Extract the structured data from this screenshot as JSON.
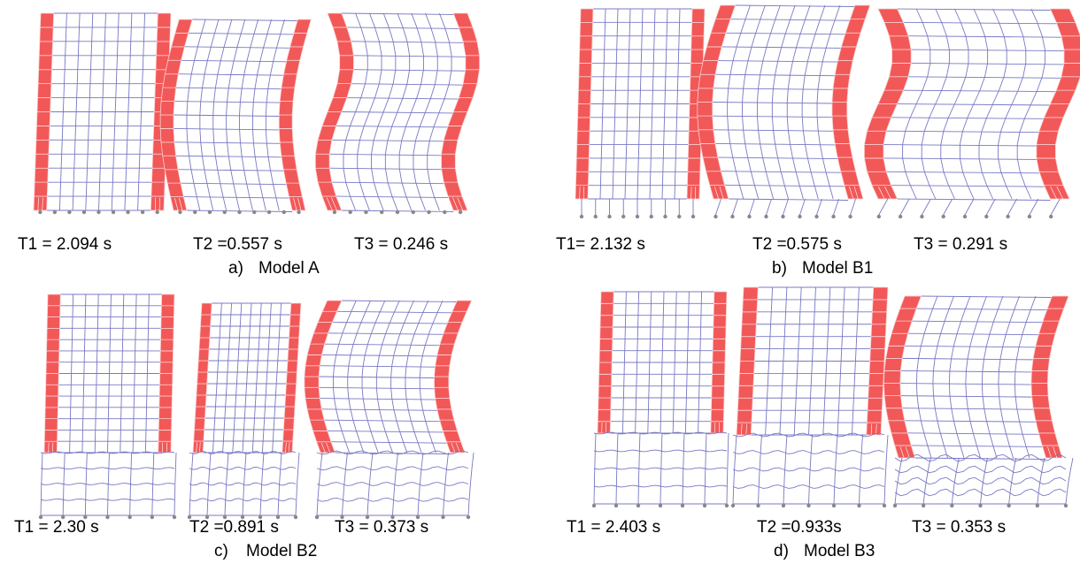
{
  "panels": [
    {
      "label": "a)",
      "model": "Model A",
      "modes": [
        "T1 = 2.094 s",
        "T2 =0.557 s",
        "T3 = 0.246 s"
      ]
    },
    {
      "label": "b)",
      "model": "Model B1",
      "modes": [
        "T1= 2.132 s",
        "T2 =0.575 s",
        "T3 = 0.291 s"
      ]
    },
    {
      "label": "c)",
      "model": "Model B2",
      "modes": [
        "T1 = 2.30 s",
        "T2 =0.891 s",
        "T3 = 0.373 s"
      ]
    },
    {
      "label": "d)",
      "model": "Model B3",
      "modes": [
        "T1 = 2.403 s",
        "T2 =0.933s",
        "T3 = 0.353 s"
      ]
    }
  ]
}
